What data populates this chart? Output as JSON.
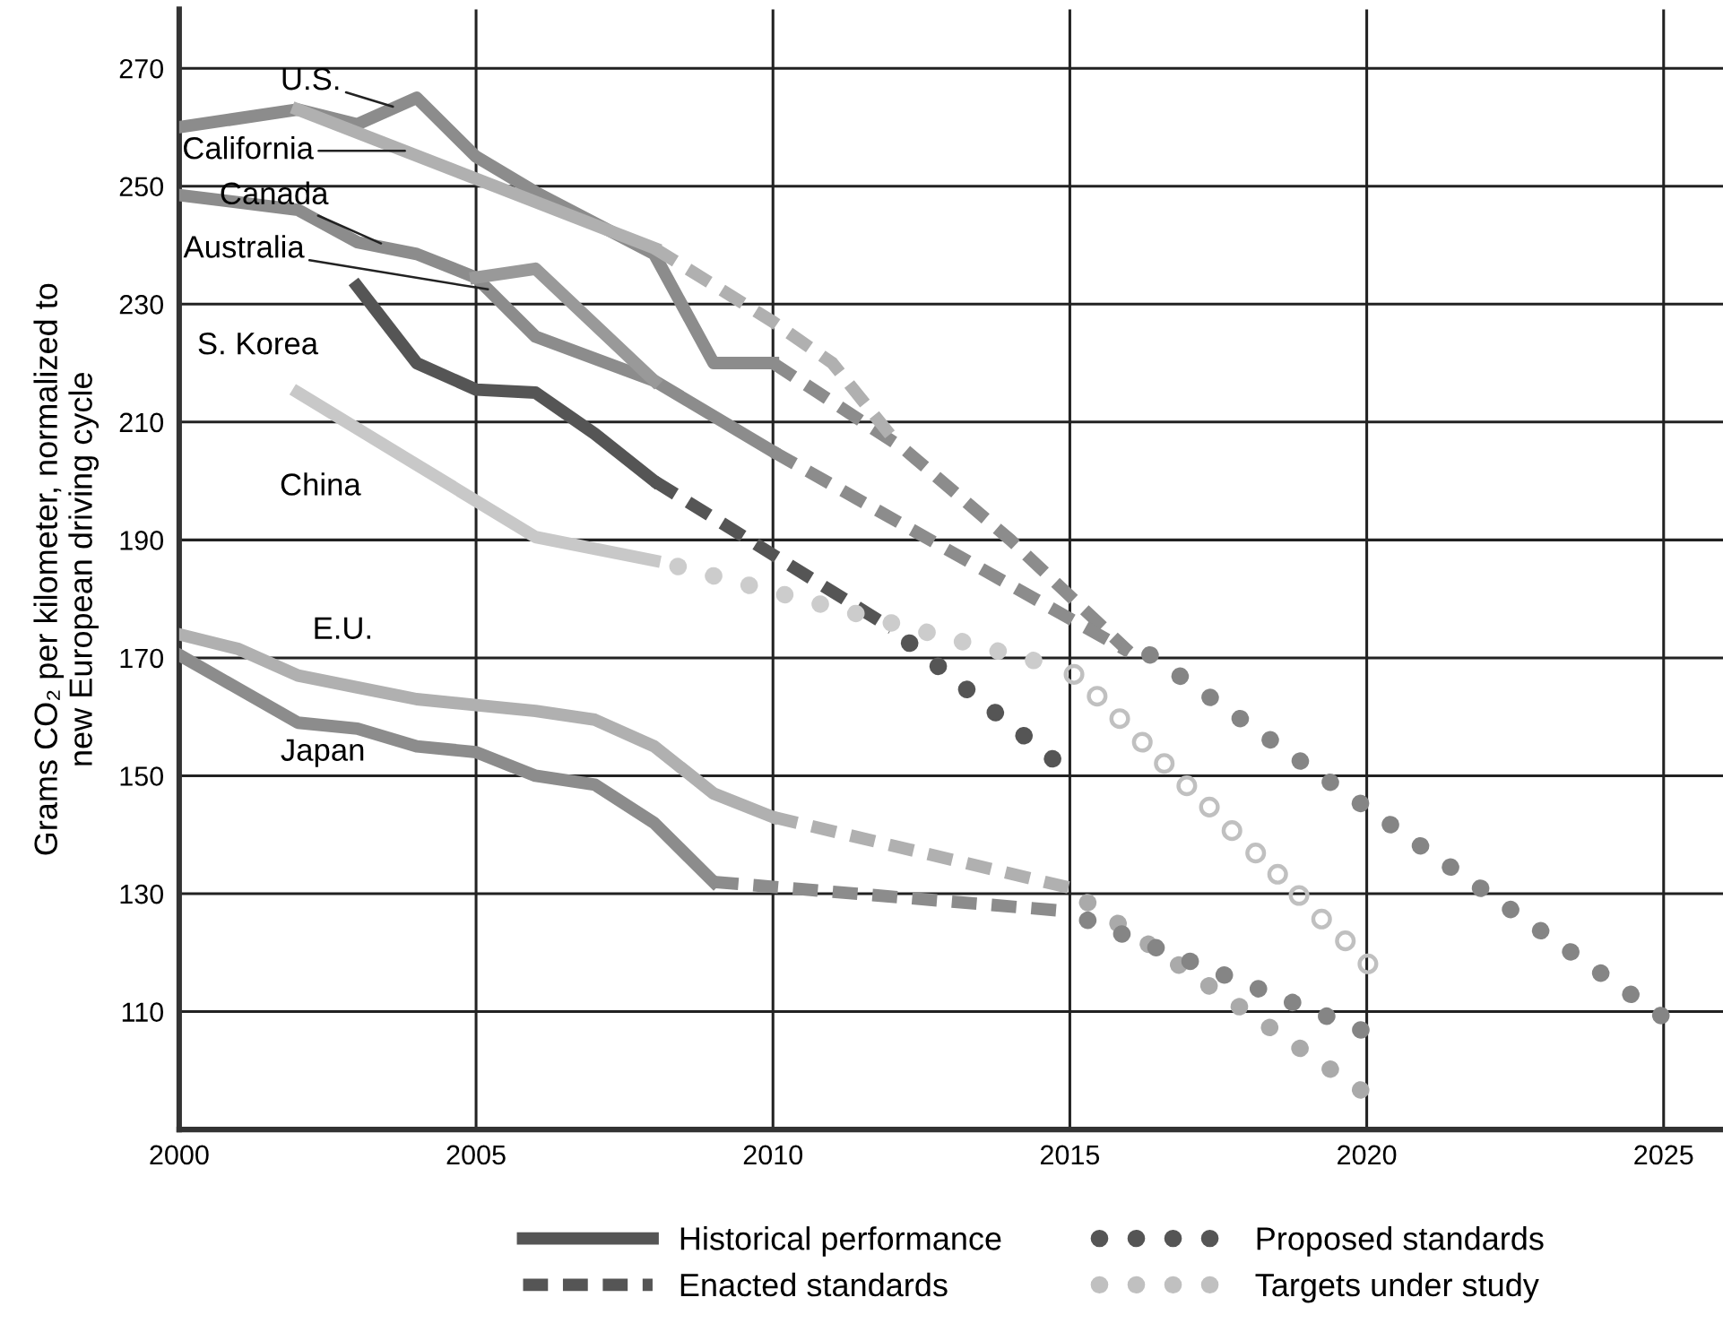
{
  "chart_data": {
    "type": "line",
    "ylabel": "Grams CO₂ per kilometer, normalized to\nnew European driving cycle",
    "xlim": [
      2000,
      2026
    ],
    "xticks": [
      2000,
      2005,
      2010,
      2015,
      2020,
      2025
    ],
    "ylim": [
      90,
      280
    ],
    "yticks": [
      110,
      130,
      150,
      170,
      190,
      210,
      230,
      250,
      270
    ],
    "grid": true,
    "legend": "bottom",
    "series": [
      {
        "color": "#8c8c8c",
        "line_style": "solid",
        "x": [
          2000,
          2002,
          2003,
          2004,
          2005,
          2006,
          2008,
          2009,
          2010
        ],
        "values": [
          260,
          263,
          260.5,
          265,
          255,
          249,
          238.5,
          220,
          220
        ]
      },
      {
        "color": "#8c8c8c",
        "line_style": "dashed",
        "x": [
          2010,
          2012.2,
          2014,
          2016
        ],
        "values": [
          220,
          205.5,
          190,
          171
        ]
      },
      {
        "color": "#858585",
        "line_style": "dotted",
        "x": [
          2016.35,
          2025
        ],
        "values": [
          170.5,
          109
        ]
      },
      {
        "color": "#b0b0b0",
        "line_style": "solid",
        "x": [
          2002,
          2008
        ],
        "values": [
          263,
          239.5
        ]
      },
      {
        "color": "#b0b0b0",
        "line_style": "dashed",
        "x": [
          2008,
          2010,
          2011,
          2012
        ],
        "values": [
          239.5,
          227,
          220,
          207.5
        ]
      },
      {
        "color": "#8c8c8c",
        "line_style": "solid",
        "x": [
          2000,
          2002,
          2003,
          2004,
          2005,
          2006,
          2008,
          2010
        ],
        "values": [
          248.5,
          246,
          240.5,
          238.5,
          234.5,
          224.5,
          217,
          205
        ]
      },
      {
        "color": "#8c8c8c",
        "line_style": "dashed",
        "x": [
          2010,
          2016
        ],
        "values": [
          205,
          171
        ]
      },
      {
        "color": "#999999",
        "line_style": "solid",
        "x": [
          2005,
          2006,
          2008
        ],
        "values": [
          234.5,
          236,
          217
        ]
      },
      {
        "name": "Historical performance",
        "color": "#555555",
        "line_style": "solid",
        "x": [
          2003,
          2004,
          2005,
          2006,
          2007,
          2008
        ],
        "values": [
          233,
          220,
          215.5,
          215,
          208,
          200
        ]
      },
      {
        "name": "Enacted standards",
        "color": "#555555",
        "line_style": "dashed",
        "x": [
          2008,
          2012
        ],
        "values": [
          200,
          175
        ]
      },
      {
        "name": "Proposed standards",
        "color": "#555555",
        "line_style": "dotted",
        "x": [
          2012.3,
          2015
        ],
        "values": [
          172.5,
          150.5
        ]
      },
      {
        "color": "#c8c8c8",
        "line_style": "solid",
        "x": [
          2002,
          2006,
          2008
        ],
        "values": [
          215,
          190.5,
          186.5
        ]
      },
      {
        "color": "#cccccc",
        "line_style": "dotted",
        "x": [
          2008.4,
          2014.6
        ],
        "values": [
          185.5,
          169
        ]
      },
      {
        "name": "Targets under study",
        "type": "scatter",
        "marker": "circle",
        "color": "#c0c0c0",
        "x": [
          2015.07,
          2015.46,
          2015.84,
          2016.22,
          2016.59,
          2016.97,
          2017.35,
          2017.73,
          2018.13,
          2018.5,
          2018.86,
          2019.24,
          2019.64,
          2020.02
        ],
        "values": [
          167.2,
          163.5,
          159.7,
          155.7,
          152.1,
          148.3,
          144.7,
          140.7,
          136.9,
          133.3,
          129.7,
          125.7,
          122,
          118.1
        ]
      },
      {
        "color": "#b0b0b0",
        "line_style": "solid",
        "x": [
          2000,
          2001,
          2002,
          2003,
          2004,
          2005,
          2006,
          2007,
          2008,
          2009,
          2010
        ],
        "values": [
          174,
          171.5,
          167,
          165,
          163,
          162,
          161,
          159.5,
          155,
          147,
          143
        ]
      },
      {
        "color": "#b0b0b0",
        "line_style": "dashed",
        "x": [
          2010,
          2015
        ],
        "values": [
          143,
          131
        ]
      },
      {
        "color": "#aaaaaa",
        "line_style": "dotted",
        "x": [
          2015.3,
          2020
        ],
        "values": [
          128.5,
          96
        ]
      },
      {
        "color": "#8c8c8c",
        "line_style": "solid",
        "x": [
          2000,
          2002,
          2003,
          2004,
          2005,
          2006,
          2007,
          2008,
          2009
        ],
        "values": [
          170.5,
          159,
          158,
          155,
          154,
          150,
          148.5,
          142,
          132
        ]
      },
      {
        "color": "#8c8c8c",
        "line_style": "dashed",
        "x": [
          2009,
          2015
        ],
        "values": [
          132,
          127
        ]
      },
      {
        "color": "#858585",
        "line_style": "dotted",
        "x": [
          2015.3,
          2020
        ],
        "values": [
          125.5,
          106.5
        ]
      }
    ],
    "annotations": [
      {
        "text": "U.S.",
        "x": 2003.6,
        "y": 263.5
      },
      {
        "text": "California",
        "x": 2003.8,
        "y": 256
      },
      {
        "text": "Canada",
        "x": 2003.4,
        "y": 240.3
      },
      {
        "text": "Australia",
        "x": 2005.2,
        "y": 232.5
      },
      {
        "text": "S. Korea",
        "x": 2003,
        "y": 233
      },
      {
        "text": "China",
        "x": 2002,
        "y": 215
      },
      {
        "text": "E.U.",
        "x": 2002,
        "y": 167
      },
      {
        "text": "Japan",
        "x": 2002,
        "y": 159
      }
    ]
  }
}
